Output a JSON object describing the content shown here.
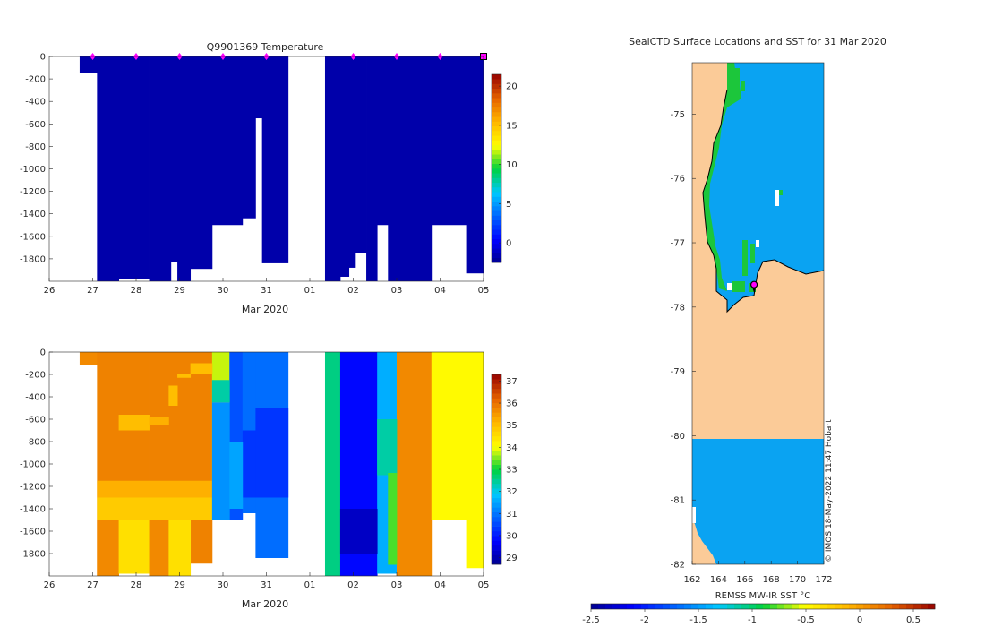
{
  "chart_data": [
    {
      "type": "heatmap",
      "id": "temperature-panel",
      "title": "Q9901369  Temperature",
      "xlabel": "Mar 2020",
      "ylabel": "",
      "x_ticks": [
        "26",
        "27",
        "28",
        "29",
        "30",
        "31",
        "01",
        "02",
        "03",
        "04",
        "05"
      ],
      "x_range": [
        26,
        36
      ],
      "y_ticks": [
        0,
        -200,
        -400,
        -600,
        -800,
        -1000,
        -1200,
        -1400,
        -1600,
        -1800
      ],
      "y_range": [
        -2000,
        0
      ],
      "colorbar": {
        "ticks": [
          0,
          5,
          10,
          15,
          20
        ],
        "range": [
          -2.5,
          21.5
        ]
      },
      "profile_markers_x": [
        27,
        28,
        29,
        30,
        31,
        33,
        34,
        35
      ],
      "last_profile_x": 36,
      "columns": [
        {
          "x0": 26.7,
          "x1": 27.1,
          "bottom": -150,
          "value": -1.8
        },
        {
          "x0": 27.1,
          "x1": 27.6,
          "bottom": -2000,
          "value": -1.8
        },
        {
          "x0": 27.6,
          "x1": 28.3,
          "bottom": -1980,
          "value": -1.8
        },
        {
          "x0": 28.3,
          "x1": 28.7,
          "bottom": -2000,
          "value": -1.8
        },
        {
          "x0": 28.7,
          "x1": 28.8,
          "bottom": -2000,
          "value": -1.8
        },
        {
          "x0": 28.8,
          "x1": 28.95,
          "bottom": -1830,
          "value": -1.8
        },
        {
          "x0": 28.95,
          "x1": 29.25,
          "bottom": -2000,
          "value": -1.8
        },
        {
          "x0": 29.25,
          "x1": 29.75,
          "bottom": -1890,
          "value": -1.8
        },
        {
          "x0": 29.75,
          "x1": 30.45,
          "bottom": -1500,
          "value": -1.8
        },
        {
          "x0": 30.45,
          "x1": 30.75,
          "bottom": -1440,
          "value": -1.8
        },
        {
          "x0": 30.75,
          "x1": 30.9,
          "bottom": -550,
          "value": -1.8
        },
        {
          "x0": 30.9,
          "x1": 31.5,
          "bottom": -1840,
          "value": -1.8
        },
        {
          "x0": 32.35,
          "x1": 32.7,
          "bottom": -2000,
          "value": -1.8
        },
        {
          "x0": 32.7,
          "x1": 32.9,
          "bottom": -1960,
          "value": -1.8
        },
        {
          "x0": 32.9,
          "x1": 33.05,
          "bottom": -1880,
          "value": -1.8
        },
        {
          "x0": 33.05,
          "x1": 33.3,
          "bottom": -1750,
          "value": -1.8
        },
        {
          "x0": 33.3,
          "x1": 33.55,
          "bottom": -2000,
          "value": -1.8
        },
        {
          "x0": 33.55,
          "x1": 33.8,
          "bottom": -1500,
          "value": -1.8
        },
        {
          "x0": 33.8,
          "x1": 34.8,
          "bottom": -2000,
          "value": -1.8
        },
        {
          "x0": 34.8,
          "x1": 35.6,
          "bottom": -1500,
          "value": -1.8
        },
        {
          "x0": 35.6,
          "x1": 36.0,
          "bottom": -1930,
          "value": -1.8
        }
      ]
    },
    {
      "type": "heatmap",
      "id": "salinity-panel",
      "title": "",
      "xlabel": "Mar 2020",
      "ylabel": "",
      "x_ticks": [
        "26",
        "27",
        "28",
        "29",
        "30",
        "31",
        "01",
        "02",
        "03",
        "04",
        "05"
      ],
      "x_range": [
        26,
        36
      ],
      "y_ticks": [
        0,
        -200,
        -400,
        -600,
        -800,
        -1000,
        -1200,
        -1400,
        -1600,
        -1800
      ],
      "y_range": [
        -2000,
        0
      ],
      "colorbar": {
        "ticks": [
          29,
          30,
          31,
          32,
          33,
          34,
          35,
          36,
          37
        ],
        "range": [
          28.7,
          37.3
        ]
      },
      "columns": [
        {
          "x0": 26.7,
          "x1": 27.1,
          "bottom": -120,
          "value": 35.7
        },
        {
          "x0": 27.1,
          "x1": 27.6,
          "bottom": -2000,
          "value": 35.8
        },
        {
          "x0": 27.6,
          "x1": 28.3,
          "bottom": -1980,
          "value": 35.8
        },
        {
          "x0": 28.3,
          "x1": 28.75,
          "bottom": -2000,
          "value": 35.8
        },
        {
          "x0": 28.75,
          "x1": 28.95,
          "bottom": -1830,
          "value": 35.8
        },
        {
          "x0": 28.95,
          "x1": 29.25,
          "bottom": -2000,
          "value": 35.8
        },
        {
          "x0": 29.25,
          "x1": 29.75,
          "bottom": -1890,
          "value": 35.8
        },
        {
          "x0": 29.75,
          "x1": 30.15,
          "bottom": -1500,
          "value": 33.8
        },
        {
          "x0": 30.15,
          "x1": 30.45,
          "bottom": -1500,
          "value": 30.6
        },
        {
          "x0": 30.45,
          "x1": 30.75,
          "bottom": -1440,
          "value": 30.9
        },
        {
          "x0": 30.75,
          "x1": 31.5,
          "bottom": -1840,
          "value": 30.9
        },
        {
          "x0": 32.35,
          "x1": 32.7,
          "bottom": -2000,
          "value": 32.6
        },
        {
          "x0": 32.7,
          "x1": 33.55,
          "bottom": -2000,
          "value": 29.8
        },
        {
          "x0": 33.55,
          "x1": 34.0,
          "bottom": -1980,
          "value": 31.6
        },
        {
          "x0": 34.0,
          "x1": 34.8,
          "bottom": -2000,
          "value": 35.7
        },
        {
          "x0": 34.8,
          "x1": 35.6,
          "bottom": -1500,
          "value": 34.1
        },
        {
          "x0": 35.6,
          "x1": 36.0,
          "bottom": -1930,
          "value": 34.1
        }
      ],
      "patches": [
        {
          "x0": 27.6,
          "x1": 28.3,
          "top": -560,
          "bottom": -700,
          "value": 35.0
        },
        {
          "x0": 28.3,
          "x1": 28.75,
          "top": -580,
          "bottom": -650,
          "value": 35.2
        },
        {
          "x0": 28.75,
          "x1": 28.95,
          "top": -300,
          "bottom": -480,
          "value": 35.0
        },
        {
          "x0": 28.95,
          "x1": 29.25,
          "top": -200,
          "bottom": -230,
          "value": 35.0
        },
        {
          "x0": 29.25,
          "x1": 29.75,
          "top": -100,
          "bottom": -200,
          "value": 35.0
        },
        {
          "x0": 27.1,
          "x1": 29.75,
          "top": -1150,
          "bottom": -1300,
          "value": 35.2
        },
        {
          "x0": 27.1,
          "x1": 29.75,
          "top": -1300,
          "bottom": -1500,
          "value": 34.8
        },
        {
          "x0": 27.1,
          "x1": 27.6,
          "top": -1500,
          "bottom": -2000,
          "value": 35.7
        },
        {
          "x0": 27.6,
          "x1": 28.3,
          "top": -1500,
          "bottom": -1980,
          "value": 34.5
        },
        {
          "x0": 28.3,
          "x1": 28.75,
          "top": -1500,
          "bottom": -2000,
          "value": 35.7
        },
        {
          "x0": 28.75,
          "x1": 29.25,
          "top": -1500,
          "bottom": -2000,
          "value": 34.5
        },
        {
          "x0": 29.75,
          "x1": 30.15,
          "top": -250,
          "bottom": -450,
          "value": 32.4
        },
        {
          "x0": 29.75,
          "x1": 30.15,
          "top": -450,
          "bottom": -1500,
          "value": 31.3
        },
        {
          "x0": 30.45,
          "x1": 30.75,
          "top": -700,
          "bottom": -1300,
          "value": 30.3
        },
        {
          "x0": 30.15,
          "x1": 30.45,
          "top": -800,
          "bottom": -1400,
          "value": 31.5
        },
        {
          "x0": 30.75,
          "x1": 31.5,
          "top": -500,
          "bottom": -1300,
          "value": 30.3
        },
        {
          "x0": 32.7,
          "x1": 33.55,
          "top": -1400,
          "bottom": -1800,
          "value": 29.2
        },
        {
          "x0": 33.55,
          "x1": 34.0,
          "top": -600,
          "bottom": -1100,
          "value": 32.4
        },
        {
          "x0": 33.8,
          "x1": 34.0,
          "top": -1080,
          "bottom": -1900,
          "value": 33.3
        }
      ]
    },
    {
      "type": "heatmap",
      "id": "sst-map",
      "title": "SealCTD Surface Locations and SST for 31 Mar 2020",
      "xlabel": "",
      "ylabel": "",
      "x_ticks": [
        "162",
        "164",
        "166",
        "168",
        "170",
        "172"
      ],
      "x_range": [
        162,
        172
      ],
      "y_ticks": [
        "-75",
        "-76",
        "-77",
        "-78",
        "-79",
        "-80",
        "-81",
        "-82"
      ],
      "y_range": [
        -82,
        -74.2
      ],
      "colorbar": {
        "label": "REMSS MW-IR SST °C",
        "ticks": [
          "-2.5",
          "-2",
          "-1.5",
          "-1",
          "-0.5",
          "0",
          "0.5"
        ],
        "range": [
          -2.5,
          0.7
        ]
      },
      "sst_values": {
        "open_water": -1.4,
        "coastal_band": -0.9,
        "land": "land"
      },
      "seal_location": {
        "lon": 166.7,
        "lat": -77.65
      },
      "watermark": "© IMOS 18-May-2022 11:47 Hobart"
    }
  ],
  "colors": {
    "temperature_cold": "#000080",
    "land": "#fbcb98",
    "open_water": "#0aa3f2",
    "coastal_band": "#1cc63b",
    "marker": "#ff00ff",
    "axis": "#262626"
  }
}
